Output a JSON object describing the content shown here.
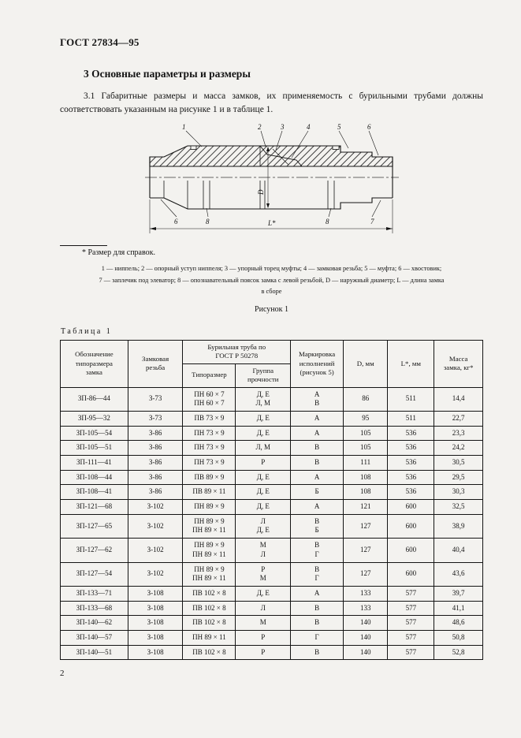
{
  "page": {
    "standard": "ГОСТ 27834—95",
    "number": "2"
  },
  "section": {
    "title": "3  Основные параметры и размеры",
    "paragraph": "3.1  Габаритные размеры и масса замков, их применяемость с бурильными трубами должны соответствовать указанным на рисунке 1 и в таблице 1."
  },
  "figure": {
    "footnote": "*  Размер для справок.",
    "legend_line1": "1 — ниппель; 2 — опорный уступ ниппеля; 3 — упорный торец муфты; 4 — замковая резьба; 5 — муфта; 6 — хвостовик;",
    "legend_line2": "7 — заплечик под элеватор; 8 — опознавательный поясок замка с левой резьбой, D — наружный диаметр; L — длина замка",
    "legend_line3": "в сборе",
    "caption": "Рисунок 1",
    "callouts": {
      "n1": "1",
      "n2": "2",
      "n3": "3",
      "n4": "4",
      "n5": "5",
      "n6_top": "6",
      "n6_bottom": "6",
      "n7": "7",
      "n8_left": "8",
      "n8_right": "8"
    },
    "dimensions": {
      "diameter": "D",
      "length": "L*"
    }
  },
  "table": {
    "title": "Таблица 1",
    "headers": {
      "designation": "Обозначение\nтипоразмера\nзамка",
      "thread": "Замковая\nрезьба",
      "pipe_group": "Бурильная труба по\nГОСТ Р 50278",
      "size": "Типоразмер",
      "strength": "Группа\nпрочности",
      "marking": "Маркировка\nисполнений\n(рисунок 5)",
      "d": "D, мм",
      "l": "L*, мм",
      "mass": "Масса\nзамка, кг*"
    },
    "columns": [
      "designation",
      "thread",
      "size",
      "group",
      "marking",
      "d",
      "l",
      "mass"
    ],
    "rows": [
      {
        "designation": "ЗП-86—44",
        "thread": "З-73",
        "size": "ПН 60 × 7\nПН 60 × 7",
        "group": "Д, Е\nЛ, М",
        "marking": "А\nВ",
        "d": "86",
        "l": "511",
        "mass": "14,4"
      },
      {
        "designation": "ЗП-95—32",
        "thread": "З-73",
        "size": "ПВ 73 × 9",
        "group": "Д, Е",
        "marking": "А",
        "d": "95",
        "l": "511",
        "mass": "22,7"
      },
      {
        "designation": "ЗП-105—54",
        "thread": "З-86",
        "size": "ПН 73 × 9",
        "group": "Д, Е",
        "marking": "А",
        "d": "105",
        "l": "536",
        "mass": "23,3"
      },
      {
        "designation": "ЗП-105—51",
        "thread": "З-86",
        "size": "ПН 73 × 9",
        "group": "Л, М",
        "marking": "В",
        "d": "105",
        "l": "536",
        "mass": "24,2"
      },
      {
        "designation": "ЗП-111—41",
        "thread": "З-86",
        "size": "ПН 73 × 9",
        "group": "Р",
        "marking": "В",
        "d": "111",
        "l": "536",
        "mass": "30,5"
      },
      {
        "designation": "ЗП-108—44",
        "thread": "З-86",
        "size": "ПВ 89 × 9",
        "group": "Д, Е",
        "marking": "А",
        "d": "108",
        "l": "536",
        "mass": "29,5"
      },
      {
        "designation": "ЗП-108—41",
        "thread": "З-86",
        "size": "ПВ 89 × 11",
        "group": "Д, Е",
        "marking": "Б",
        "d": "108",
        "l": "536",
        "mass": "30,3"
      },
      {
        "designation": "ЗП-121—68",
        "thread": "З-102",
        "size": "ПН 89 × 9",
        "group": "Д, Е",
        "marking": "А",
        "d": "121",
        "l": "600",
        "mass": "32,5"
      },
      {
        "designation": "ЗП-127—65",
        "thread": "З-102",
        "size": "ПН 89 × 9\nПН 89 × 11",
        "group": "Л\nД, Е",
        "marking": "В\nБ",
        "d": "127",
        "l": "600",
        "mass": "38,9"
      },
      {
        "designation": "ЗП-127—62",
        "thread": "З-102",
        "size": "ПН 89 × 9\nПН 89 × 11",
        "group": "М\nЛ",
        "marking": "В\nГ",
        "d": "127",
        "l": "600",
        "mass": "40,4"
      },
      {
        "designation": "ЗП-127—54",
        "thread": "З-102",
        "size": "ПН 89 × 9\nПН 89 × 11",
        "group": "Р\nМ",
        "marking": "В\nГ",
        "d": "127",
        "l": "600",
        "mass": "43,6"
      },
      {
        "designation": "ЗП-133—71",
        "thread": "З-108",
        "size": "ПВ 102 × 8",
        "group": "Д, Е",
        "marking": "А",
        "d": "133",
        "l": "577",
        "mass": "39,7"
      },
      {
        "designation": "ЗП-133—68",
        "thread": "З-108",
        "size": "ПВ 102 × 8",
        "group": "Л",
        "marking": "В",
        "d": "133",
        "l": "577",
        "mass": "41,1"
      },
      {
        "designation": "ЗП-140—62",
        "thread": "З-108",
        "size": "ПВ 102 × 8",
        "group": "М",
        "marking": "В",
        "d": "140",
        "l": "577",
        "mass": "48,6"
      },
      {
        "designation": "ЗП-140—57",
        "thread": "З-108",
        "size": "ПН 89 × 11",
        "group": "Р",
        "marking": "Г",
        "d": "140",
        "l": "577",
        "mass": "50,8"
      },
      {
        "designation": "ЗП-140—51",
        "thread": "З-108",
        "size": "ПВ 102 × 8",
        "group": "Р",
        "marking": "В",
        "d": "140",
        "l": "577",
        "mass": "52,8"
      }
    ]
  }
}
